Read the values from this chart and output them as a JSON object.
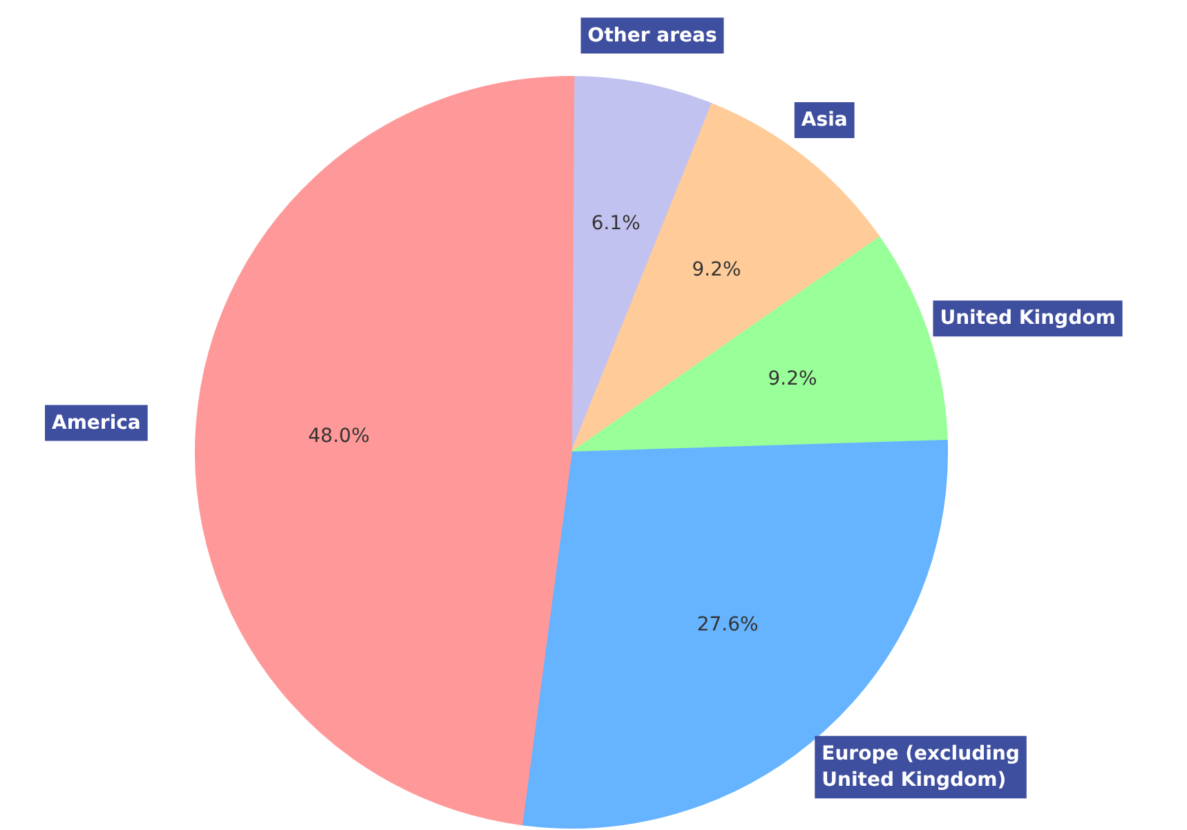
{
  "chart_data": {
    "type": "pie",
    "categories": [
      "Other areas",
      "Asia",
      "United Kingdom",
      "Europe (excluding United Kingdom)",
      "America"
    ],
    "values": [
      6.1,
      9.2,
      9.2,
      27.6,
      48.0
    ],
    "colors": [
      "#c2c2f0",
      "#ffcc99",
      "#99ff99",
      "#66b3ff",
      "#ff9999"
    ],
    "value_labels": [
      "6.1%",
      "9.2%",
      "9.2%",
      "27.6%",
      "48.0%"
    ]
  }
}
